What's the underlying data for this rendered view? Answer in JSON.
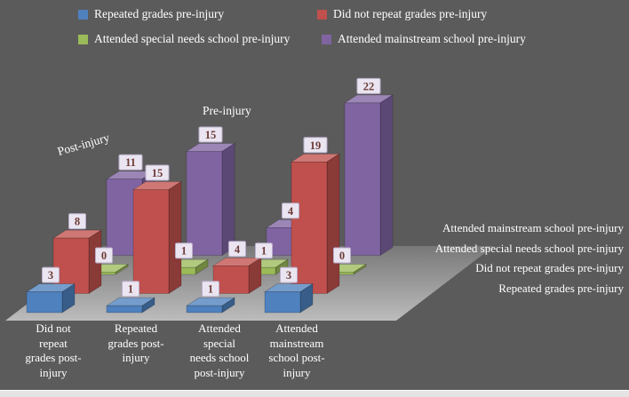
{
  "page": {
    "background_color": "#5b5b5b",
    "text_color": "#ffffff"
  },
  "legend": {
    "position": "top",
    "items": [
      {
        "label": "Repeated grades pre-injury",
        "color": "#4e81bd"
      },
      {
        "label": "Did not repeat grades pre-injury",
        "color": "#c0504d"
      },
      {
        "label": "Attended special needs school pre-injury",
        "color": "#9bbb59"
      },
      {
        "label": "Attended mainstream school pre-injury",
        "color": "#8064a2"
      }
    ]
  },
  "axis_titles": {
    "category_axis": "Post-injury",
    "series_axis": "Pre-injury"
  },
  "chart_data": {
    "type": "bar",
    "projection": "3d",
    "title": "",
    "value_axis_visible": false,
    "value_labels_shown": true,
    "categories": [
      "Did not repeat grades post-injury",
      "Repeated grades post-injury",
      "Attended special needs school post-injury",
      "Attended mainstream school post-injury"
    ],
    "category_tick_lines": [
      [
        "Did not",
        "repeat",
        "grades post-",
        "injury"
      ],
      [
        "Repeated",
        "grades post-",
        "injury"
      ],
      [
        "Attended",
        "special",
        "needs school",
        "post-injury"
      ],
      [
        "Attended",
        "mainstream",
        "school post-",
        "injury"
      ]
    ],
    "series": [
      {
        "name": "Repeated grades pre-injury",
        "color": "#4e81bd",
        "values": [
          3,
          1,
          1,
          3
        ]
      },
      {
        "name": "Did not repeat grades pre-injury",
        "color": "#c0504d",
        "values": [
          8,
          15,
          4,
          19
        ]
      },
      {
        "name": "Attended special needs school pre-injury",
        "color": "#9bbb59",
        "values": [
          0,
          1,
          1,
          0
        ]
      },
      {
        "name": "Attended mainstream school pre-injury",
        "color": "#8064a2",
        "values": [
          11,
          15,
          4,
          22
        ]
      }
    ],
    "depth_axis_labels": [
      "Attended mainstream school pre-injury",
      "Attended special needs school pre-injury",
      "Did not repeat grades pre-injury",
      "Repeated grades pre-injury"
    ],
    "floor_color_front": "#bcbcbc",
    "floor_color_back": "#787878",
    "label_box": {
      "fill": "#eae5f1",
      "border": "#b9aec9",
      "text": "#6d3b36"
    }
  }
}
